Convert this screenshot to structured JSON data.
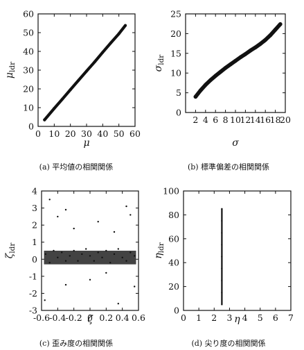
{
  "chart_data": [
    {
      "id": "a",
      "type": "scatter",
      "caption": "(a) 平均値の相関関係",
      "xlabel": "μ",
      "ylabel": "μ",
      "ylabel_sub": "ldr",
      "xlim": [
        0,
        60
      ],
      "ylim": [
        0,
        60
      ],
      "xticks": [
        "0",
        "10",
        "20",
        "30",
        "40",
        "50",
        "60"
      ],
      "yticks": [
        "0",
        "10",
        "20",
        "30",
        "40",
        "50",
        "60"
      ],
      "xtick_values": [
        0,
        10,
        20,
        30,
        40,
        50,
        60
      ],
      "ytick_values": [
        0,
        10,
        20,
        30,
        40,
        50,
        60
      ],
      "points": [
        [
          4,
          3.5
        ],
        [
          10,
          9.6
        ],
        [
          15,
          14.5
        ],
        [
          20,
          19.6
        ],
        [
          25,
          24.5
        ],
        [
          30,
          29.5
        ],
        [
          35,
          34.4
        ],
        [
          40,
          39.5
        ],
        [
          45,
          44.5
        ],
        [
          50,
          49.4
        ],
        [
          54,
          53.8
        ]
      ]
    },
    {
      "id": "b",
      "type": "scatter",
      "caption": "(b) 標準偏差の相関関係",
      "xlabel": "σ",
      "ylabel": "σ",
      "ylabel_sub": "ldr",
      "xlim": [
        0,
        20
      ],
      "ylim": [
        0,
        25
      ],
      "xticks": [
        "2",
        "4",
        "6",
        "8",
        "10",
        "12",
        "14",
        "16",
        "18",
        "20"
      ],
      "yticks": [
        "0",
        "5",
        "10",
        "15",
        "20",
        "25"
      ],
      "xtick_values": [
        2,
        4,
        6,
        8,
        10,
        12,
        14,
        16,
        18,
        20
      ],
      "ytick_values": [
        0,
        5,
        10,
        15,
        20,
        25
      ],
      "points": [
        [
          2,
          4
        ],
        [
          3,
          5.6
        ],
        [
          4,
          7
        ],
        [
          5,
          8.2
        ],
        [
          6,
          9.3
        ],
        [
          7,
          10.3
        ],
        [
          8,
          11.3
        ],
        [
          9,
          12.2
        ],
        [
          10,
          13.1
        ],
        [
          11,
          14
        ],
        [
          12,
          14.8
        ],
        [
          13,
          15.7
        ],
        [
          14,
          16.5
        ],
        [
          15,
          17.4
        ],
        [
          16,
          18.4
        ],
        [
          17,
          19.6
        ],
        [
          18,
          21
        ],
        [
          19,
          22.4
        ]
      ]
    },
    {
      "id": "c",
      "type": "scatter",
      "caption": "(c) 歪み度の相関関係",
      "xlabel": "ζ",
      "ylabel": "ζ",
      "ylabel_sub": "ldr",
      "xlim": [
        -0.6,
        0.6
      ],
      "ylim": [
        -3,
        4
      ],
      "xticks": [
        "-0.6",
        "-0.4",
        "-0.2",
        "0",
        "0.2",
        "0.4",
        "0.6"
      ],
      "yticks": [
        "-3",
        "-2",
        "-1",
        "0",
        "1",
        "2",
        "3",
        "4"
      ],
      "xtick_values": [
        -0.6,
        -0.4,
        -0.2,
        0,
        0.2,
        0.4,
        0.6
      ],
      "ytick_values": [
        -3,
        -2,
        -1,
        0,
        1,
        2,
        3,
        4
      ],
      "points": [
        [
          -0.55,
          0.3
        ],
        [
          -0.5,
          -0.2
        ],
        [
          -0.45,
          0.5
        ],
        [
          -0.4,
          0.1
        ],
        [
          -0.35,
          0.4
        ],
        [
          -0.3,
          -0.1
        ],
        [
          -0.25,
          0.2
        ],
        [
          -0.2,
          0.5
        ],
        [
          -0.15,
          -0.1
        ],
        [
          -0.1,
          0.3
        ],
        [
          -0.05,
          0.6
        ],
        [
          0,
          0.2
        ],
        [
          0.05,
          -0.1
        ],
        [
          0.1,
          0.4
        ],
        [
          0.15,
          0.1
        ],
        [
          0.2,
          0.5
        ],
        [
          0.25,
          -0.2
        ],
        [
          0.3,
          0.3
        ],
        [
          0.35,
          0.6
        ],
        [
          0.4,
          0.1
        ],
        [
          0.45,
          -0.1
        ],
        [
          0.5,
          0.4
        ],
        [
          0.55,
          0.2
        ],
        [
          -0.5,
          3.5
        ],
        [
          -0.4,
          2.5
        ],
        [
          -0.3,
          -1.5
        ],
        [
          -0.2,
          1.8
        ],
        [
          0,
          -1.2
        ],
        [
          0.1,
          2.2
        ],
        [
          0.2,
          -0.8
        ],
        [
          0.3,
          1.6
        ],
        [
          0.35,
          -2.6
        ],
        [
          0.45,
          3.1
        ],
        [
          0.55,
          -1.6
        ],
        [
          -0.56,
          -2.4
        ],
        [
          -0.3,
          2.9
        ],
        [
          0.5,
          2.6
        ]
      ]
    },
    {
      "id": "d",
      "type": "scatter",
      "caption": "(d) 尖り度の相関関係",
      "xlabel": "η",
      "ylabel": "η",
      "ylabel_sub": "ldr",
      "xlim": [
        0,
        7
      ],
      "ylim": [
        0,
        100
      ],
      "xticks": [
        "0",
        "1",
        "2",
        "3",
        "4",
        "5",
        "6",
        "7"
      ],
      "yticks": [
        "0",
        "20",
        "40",
        "60",
        "80",
        "100"
      ],
      "xtick_values": [
        0,
        1,
        2,
        3,
        4,
        5,
        6,
        7
      ],
      "ytick_values": [
        0,
        20,
        40,
        60,
        80,
        100
      ],
      "points": [
        [
          2.5,
          5
        ],
        [
          2.5,
          15
        ],
        [
          2.5,
          25
        ],
        [
          2.5,
          35
        ],
        [
          2.5,
          45
        ],
        [
          2.5,
          55
        ],
        [
          2.5,
          65
        ],
        [
          2.5,
          75
        ],
        [
          2.5,
          85
        ]
      ]
    }
  ]
}
